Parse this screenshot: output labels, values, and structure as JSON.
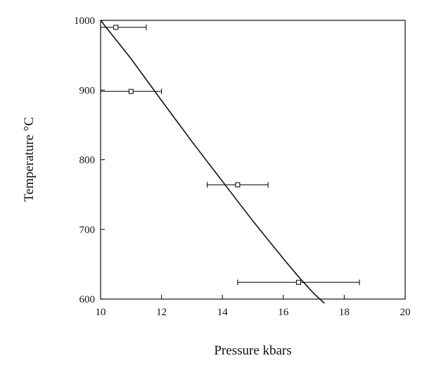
{
  "chart_data": {
    "type": "scatter",
    "xlabel": "Pressure kbars",
    "ylabel": "Temperature °C",
    "xlim": [
      10,
      20
    ],
    "ylim": [
      600,
      1000
    ],
    "x_ticks": [
      "10",
      "12",
      "14",
      "16",
      "18",
      "20"
    ],
    "y_ticks": [
      "600",
      "700",
      "800",
      "900",
      "1000"
    ],
    "grid": false,
    "legend": "none",
    "series": [
      {
        "type": "scatter",
        "marker": "open-square",
        "points": [
          {
            "x": 10.5,
            "y": 990,
            "xerr_low": 10.0,
            "xerr_high": 11.5
          },
          {
            "x": 11.0,
            "y": 898,
            "xerr_low": 10.0,
            "xerr_high": 12.0
          },
          {
            "x": 14.5,
            "y": 764,
            "xerr_low": 13.5,
            "xerr_high": 15.5
          },
          {
            "x": 16.5,
            "y": 624,
            "xerr_low": 14.5,
            "xerr_high": 18.5
          }
        ]
      },
      {
        "type": "line",
        "x": [
          10.0,
          11.0,
          12.0,
          13.0,
          14.0,
          15.0,
          16.0,
          16.5,
          17.0,
          17.35
        ],
        "y": [
          1000,
          945,
          885,
          826,
          769,
          712,
          658,
          632,
          608,
          594
        ]
      }
    ],
    "colors": {
      "ink": "#111111",
      "background": "#ffffff"
    }
  }
}
